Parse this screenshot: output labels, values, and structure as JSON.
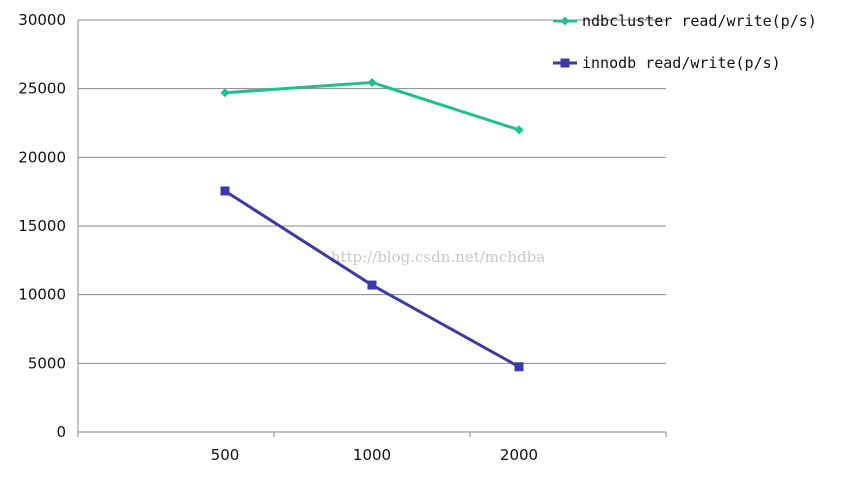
{
  "chart_data": {
    "type": "line",
    "categories": [
      "500",
      "1000",
      "2000"
    ],
    "series": [
      {
        "name": "ndbcluster read/write(p/s)",
        "values": [
          24700,
          25450,
          22000
        ],
        "color": "#1fbf8f",
        "marker": "diamond"
      },
      {
        "name": "innodb read/write(p/s)",
        "values": [
          17550,
          10700,
          4750
        ],
        "color": "#3a3aa8",
        "marker": "square"
      }
    ],
    "y_ticks": [
      "0",
      "5000",
      "10000",
      "15000",
      "20000",
      "25000",
      "30000"
    ],
    "ylim": [
      0,
      30000
    ],
    "grid": true,
    "legend_position": "top-right",
    "watermark": "http://blog.csdn.net/mchdba"
  }
}
